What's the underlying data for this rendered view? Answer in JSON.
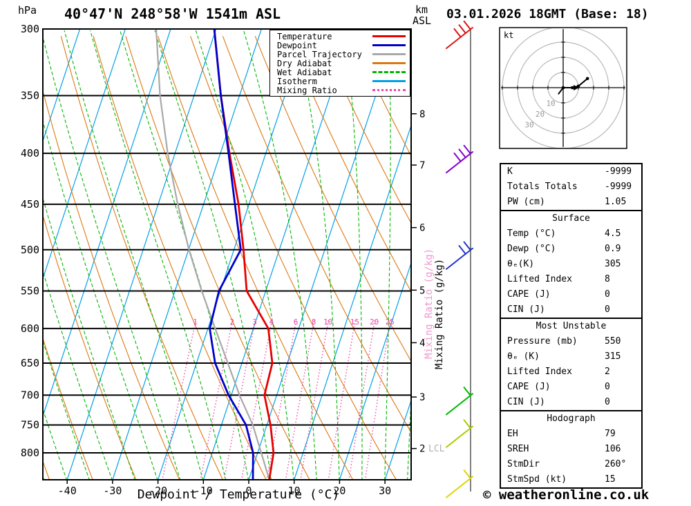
{
  "header": {
    "station_title": "40°47'N 248°58'W 1541m ASL",
    "datetime_title": "03.01.2026 18GMT (Base: 18)"
  },
  "axes": {
    "pressure_unit": "hPa",
    "altitude_unit_line1": "km",
    "altitude_unit_line2": "ASL",
    "x_label": "Dewpoint / Temperature (°C)",
    "mixing_ratio_label": "Mixing Ratio (g/kg)",
    "lcl_label": "LCL"
  },
  "legend": {
    "items": [
      {
        "label": "Temperature",
        "color": "#e60000",
        "style": "solid"
      },
      {
        "label": "Dewpoint",
        "color": "#0000cc",
        "style": "solid"
      },
      {
        "label": "Parcel Trajectory",
        "color": "#a8a8a8",
        "style": "solid"
      },
      {
        "label": "Dry Adiabat",
        "color": "#dd7711",
        "style": "solid"
      },
      {
        "label": "Wet Adiabat",
        "color": "#00b400",
        "style": "dashed"
      },
      {
        "label": "Isotherm",
        "color": "#00a0e8",
        "style": "solid"
      },
      {
        "label": "Mixing Ratio",
        "color": "#ee44aa",
        "style": "dotted"
      }
    ]
  },
  "chart_data": {
    "type": "line",
    "title": "Skew-T log-P sounding diagram",
    "x_axis_ticks_c": [
      -40,
      -30,
      -20,
      -10,
      0,
      10,
      20,
      30
    ],
    "pressure_ticks_hpa": [
      300,
      350,
      400,
      450,
      500,
      550,
      600,
      650,
      700,
      750,
      800
    ],
    "km_ticks": [
      {
        "km": 8,
        "hpa": 365
      },
      {
        "km": 7,
        "hpa": 411
      },
      {
        "km": 6,
        "hpa": 475
      },
      {
        "km": 5,
        "hpa": 549
      },
      {
        "km": 4,
        "hpa": 620
      },
      {
        "km": 3,
        "hpa": 703
      },
      {
        "km": 2,
        "hpa": 792
      }
    ],
    "lcl_hpa": 792,
    "mixing_ratio_lines_gkg": [
      1,
      2,
      3,
      4,
      6,
      8,
      10,
      15,
      20,
      25
    ],
    "isotherm_step_c": 10,
    "dry_adiabat_step_k": 10,
    "wet_adiabat_step_c": 5,
    "colors": {
      "isotherm": "#00a0e8",
      "dry_adiabat": "#dd7711",
      "wet_adiabat": "#00b400",
      "mixing_ratio": "#ee44aa"
    },
    "series": [
      {
        "name": "Temperature",
        "color": "#e60000",
        "width": 2.8,
        "points_p_t": [
          [
            851,
            4.5
          ],
          [
            800,
            3.5
          ],
          [
            750,
            0.8
          ],
          [
            700,
            -2.7
          ],
          [
            650,
            -3.3
          ],
          [
            600,
            -6.7
          ],
          [
            550,
            -14.2
          ],
          [
            500,
            -17.9
          ],
          [
            450,
            -22.3
          ],
          [
            400,
            -28.0
          ],
          [
            350,
            -34.1
          ],
          [
            300,
            -40.4
          ]
        ]
      },
      {
        "name": "Dewpoint",
        "color": "#0000cc",
        "width": 2.8,
        "points_p_t": [
          [
            851,
            0.9
          ],
          [
            800,
            -1.0
          ],
          [
            750,
            -4.6
          ],
          [
            700,
            -10.6
          ],
          [
            650,
            -15.9
          ],
          [
            600,
            -19.6
          ],
          [
            550,
            -20.3
          ],
          [
            500,
            -18.5
          ],
          [
            450,
            -23.1
          ],
          [
            400,
            -28.2
          ],
          [
            350,
            -34.1
          ],
          [
            300,
            -40.4
          ]
        ]
      },
      {
        "name": "Parcel Trajectory",
        "color": "#a8a8a8",
        "width": 2.2,
        "points_p_t": [
          [
            851,
            4.5
          ],
          [
            800,
            0.8
          ],
          [
            750,
            -3.1
          ],
          [
            700,
            -8.2
          ],
          [
            650,
            -13.1
          ],
          [
            600,
            -18.4
          ],
          [
            550,
            -24.1
          ],
          [
            500,
            -29.9
          ],
          [
            450,
            -35.7
          ],
          [
            400,
            -41.6
          ],
          [
            350,
            -47.5
          ],
          [
            300,
            -53.2
          ]
        ]
      }
    ]
  },
  "wind_barbs": [
    {
      "hpa": 300,
      "color": "#dd1111",
      "feathers": 3
    },
    {
      "hpa": 400,
      "color": "#8800cc",
      "feathers": 3
    },
    {
      "hpa": 500,
      "color": "#2233cc",
      "feathers": 2
    },
    {
      "hpa": 700,
      "color": "#00bb00",
      "feathers": 1
    },
    {
      "hpa": 755,
      "color": "#aacc00",
      "feathers": 1
    },
    {
      "hpa": 848,
      "color": "#ddd400",
      "feathers": 1
    }
  ],
  "hodograph": {
    "unit": "kt",
    "ring_step_kt": 10,
    "ring_labels": [
      "10",
      "20",
      "30"
    ],
    "trace_kt": [
      [
        -3,
        -4
      ],
      [
        0,
        0
      ],
      [
        6,
        0
      ],
      [
        10,
        1
      ],
      [
        16,
        6
      ]
    ]
  },
  "stats": {
    "sections": [
      {
        "header": "",
        "rows": [
          [
            "K",
            "-9999"
          ],
          [
            "Totals Totals",
            "-9999"
          ],
          [
            "PW (cm)",
            "1.05"
          ]
        ]
      },
      {
        "header": "Surface",
        "rows": [
          [
            "Temp (°C)",
            "4.5"
          ],
          [
            "Dewp (°C)",
            "0.9"
          ],
          [
            "θₑ(K)",
            "305"
          ],
          [
            "Lifted Index",
            "8"
          ],
          [
            "CAPE (J)",
            "0"
          ],
          [
            "CIN (J)",
            "0"
          ]
        ]
      },
      {
        "header": "Most Unstable",
        "rows": [
          [
            "Pressure (mb)",
            "550"
          ],
          [
            "θₑ (K)",
            "315"
          ],
          [
            "Lifted Index",
            "2"
          ],
          [
            "CAPE (J)",
            "0"
          ],
          [
            "CIN (J)",
            "0"
          ]
        ]
      },
      {
        "header": "Hodograph",
        "rows": [
          [
            "EH",
            "79"
          ],
          [
            "SREH",
            "106"
          ],
          [
            "StmDir",
            "260°"
          ],
          [
            "StmSpd (kt)",
            "15"
          ]
        ]
      }
    ]
  },
  "footer": {
    "copyright": "© weatheronline.co.uk"
  }
}
